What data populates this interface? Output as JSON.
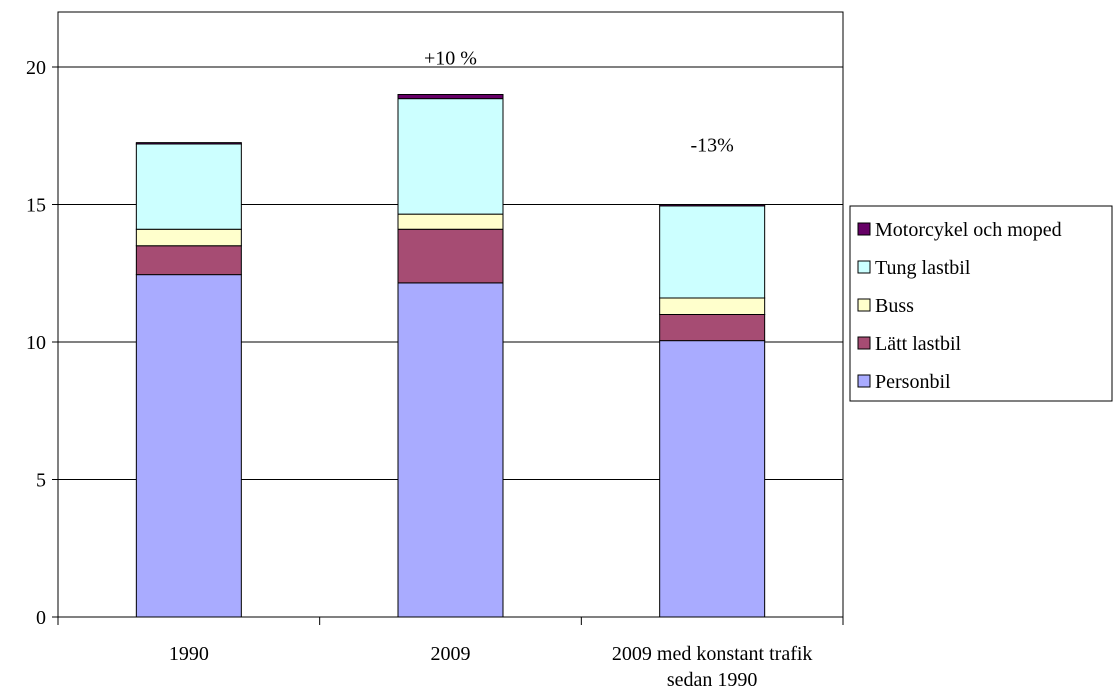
{
  "chart_data": {
    "type": "bar",
    "stacked": true,
    "categories": [
      "1990",
      "2009",
      "2009 med konstant trafik sedan 1990"
    ],
    "category_lines": [
      [
        "1990"
      ],
      [
        "2009"
      ],
      [
        "2009 med konstant trafik",
        "sedan 1990"
      ]
    ],
    "series": [
      {
        "name": "Personbil",
        "color": "#a9abff",
        "values": [
          12.45,
          12.15,
          10.05
        ]
      },
      {
        "name": "Lätt lastbil",
        "color": "#a64c73",
        "values": [
          1.05,
          1.95,
          0.95
        ]
      },
      {
        "name": "Buss",
        "color": "#ffffcc",
        "values": [
          0.6,
          0.55,
          0.6
        ]
      },
      {
        "name": "Tung lastbil",
        "color": "#ccffff",
        "values": [
          3.1,
          4.2,
          3.35
        ]
      },
      {
        "name": "Motorcykel och moped",
        "color": "#660066",
        "values": [
          0.05,
          0.15,
          0.05
        ]
      }
    ],
    "annotations": [
      "",
      "+10 %",
      "-13%"
    ],
    "ylim": [
      0,
      22
    ],
    "yticks": [
      0,
      5,
      10,
      15,
      20
    ],
    "title": "",
    "xlabel": "",
    "ylabel": "",
    "grid": true,
    "legend_position": "right",
    "legend_order": [
      "Motorcykel och moped",
      "Tung lastbil",
      "Buss",
      "Lätt lastbil",
      "Personbil"
    ]
  }
}
